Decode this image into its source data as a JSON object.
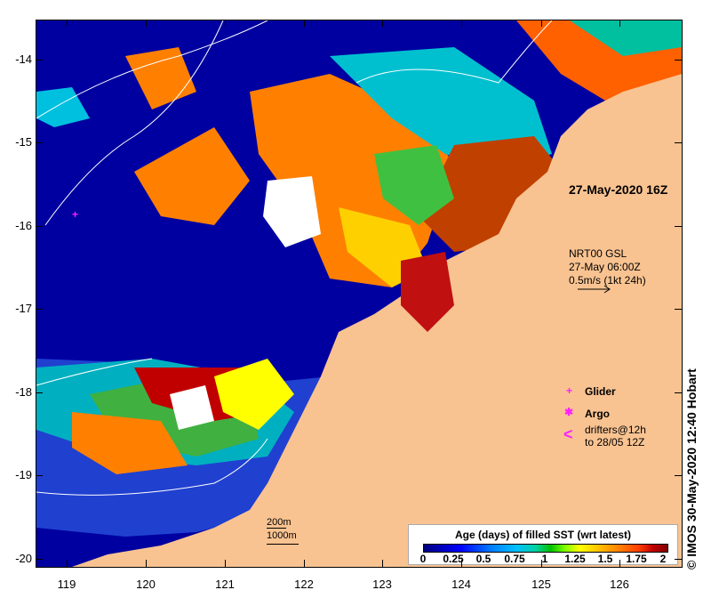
{
  "map": {
    "lat_labels": [
      "-14",
      "-15",
      "-16",
      "-17",
      "-18",
      "-19",
      "-20"
    ],
    "lon_labels": [
      "119",
      "120",
      "121",
      "122",
      "123",
      "124",
      "125",
      "126"
    ],
    "lon_range": [
      118.7,
      126.7
    ],
    "lat_range": [
      -13.5,
      -20.1
    ],
    "land_color": "#f9c391",
    "ocean_color": "#0000a0"
  },
  "annotations": {
    "observation_time": "27-May-2020 16Z",
    "current_source": "NRT00 GSL",
    "current_time": "27-May 06:00Z",
    "current_scale": "0.5m/s (1kt 24h)"
  },
  "legend": {
    "glider": "Glider",
    "argo": "Argo",
    "drifters_line1": "drifters@12h",
    "drifters_line2": "to 28/05 12Z",
    "glider_symbol": "+",
    "argo_symbol": "✱",
    "drifter_symbol": "<",
    "symbol_color": "#ff20ff"
  },
  "colorbar": {
    "title": "Age (days) of filled SST (wrt latest)",
    "ticks": [
      "0",
      "0.25",
      "0.5",
      "0.75",
      "1",
      "1.25",
      "1.5",
      "1.75",
      "2"
    ],
    "range": [
      0,
      2
    ]
  },
  "scale": {
    "depth_200": "200m",
    "depth_1000": "1000m"
  },
  "credit": "© IMOS 30-May-2020 12:40 Hobart"
}
